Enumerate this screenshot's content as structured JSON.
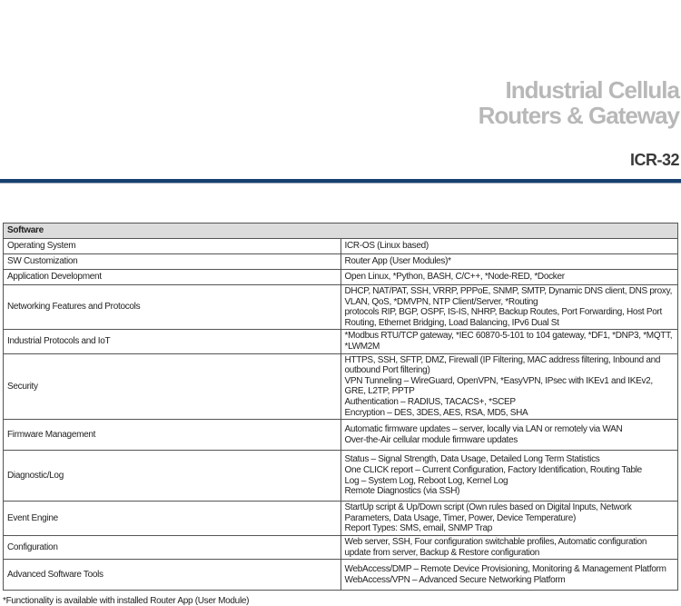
{
  "header": {
    "title_line1": "Industrial Cellula",
    "title_line2": "Routers & Gateway",
    "model": "ICR-32"
  },
  "table": {
    "section": "Software",
    "rows": [
      {
        "label": "Operating System",
        "lines": [
          "ICR-OS (Linux based)"
        ]
      },
      {
        "label": "SW Customization",
        "lines": [
          "Router App (User Modules)*"
        ]
      },
      {
        "label": "Application Development",
        "lines": [
          "Open Linux, *Python, BASH, C/C++, *Node-RED, *Docker"
        ]
      },
      {
        "label": "Networking Features and Protocols",
        "lines": [
          "DHCP, NAT/PAT, SSH, VRRP, PPPoE, SNMP, SMTP, Dynamic DNS client, DNS proxy, VLAN, QoS, *DMVPN, NTP Client/Server, *Routing",
          "protocols RIP, BGP, OSPF, IS-IS, NHRP, Backup Routes, Port Forwarding, Host Port Routing, Ethernet Bridging, Load Balancing, IPv6 Dual St"
        ]
      },
      {
        "label": "Industrial Protocols and IoT",
        "lines": [
          "*Modbus RTU/TCP gateway, *IEC 60870-5-101 to 104 gateway, *DF1, *DNP3, *MQTT, *LWM2M"
        ]
      },
      {
        "label": "Security",
        "lines": [
          "HTTPS, SSH, SFTP, DMZ, Firewall (IP Filtering, MAC address filtering, Inbound and outbound Port filtering)",
          "VPN Tunneling – WireGuard, OpenVPN, *EasyVPN, IPsec with IKEv1 and IKEv2, GRE, L2TP, PPTP",
          "Authentication – RADIUS, TACACS+, *SCEP",
          "Encryption – DES, 3DES, AES, RSA, MD5, SHA"
        ]
      },
      {
        "label": "Firmware Management",
        "lines": [
          "Automatic firmware updates – server, locally via LAN or remotely via WAN",
          "Over-the-Air cellular module firmware updates"
        ]
      },
      {
        "label": "Diagnostic/Log",
        "lines": [
          "Status – Signal Strength, Data Usage, Detailed Long Term Statistics",
          "One CLICK report – Current Configuration, Factory Identification, Routing Table",
          "Log – System Log, Reboot Log, Kernel Log",
          "Remote Diagnostics (via SSH)"
        ]
      },
      {
        "label": "Event Engine",
        "lines": [
          "StartUp script & Up/Down script (Own rules based on Digital Inputs, Network Parameters, Data Usage, Timer, Power, Device Temperature)",
          "Report Types: SMS, email, SNMP Trap"
        ]
      },
      {
        "label": "Configuration",
        "lines": [
          "Web server, SSH, Four configuration switchable profiles, Automatic configuration update from server, Backup & Restore configuration"
        ]
      },
      {
        "label": "Advanced Software Tools",
        "lines": [
          "WebAccess/DMP – Remote Device Provisioning, Monitoring & Management Platform",
          "WebAccess/VPN – Advanced Secure Networking Platform"
        ]
      }
    ],
    "footnote": "*Functionality is available with installed Router App (User Module)"
  },
  "colors": {
    "rule": "#17406f",
    "title": "#b8b8b8",
    "header_bg": "#dcdcdc"
  }
}
